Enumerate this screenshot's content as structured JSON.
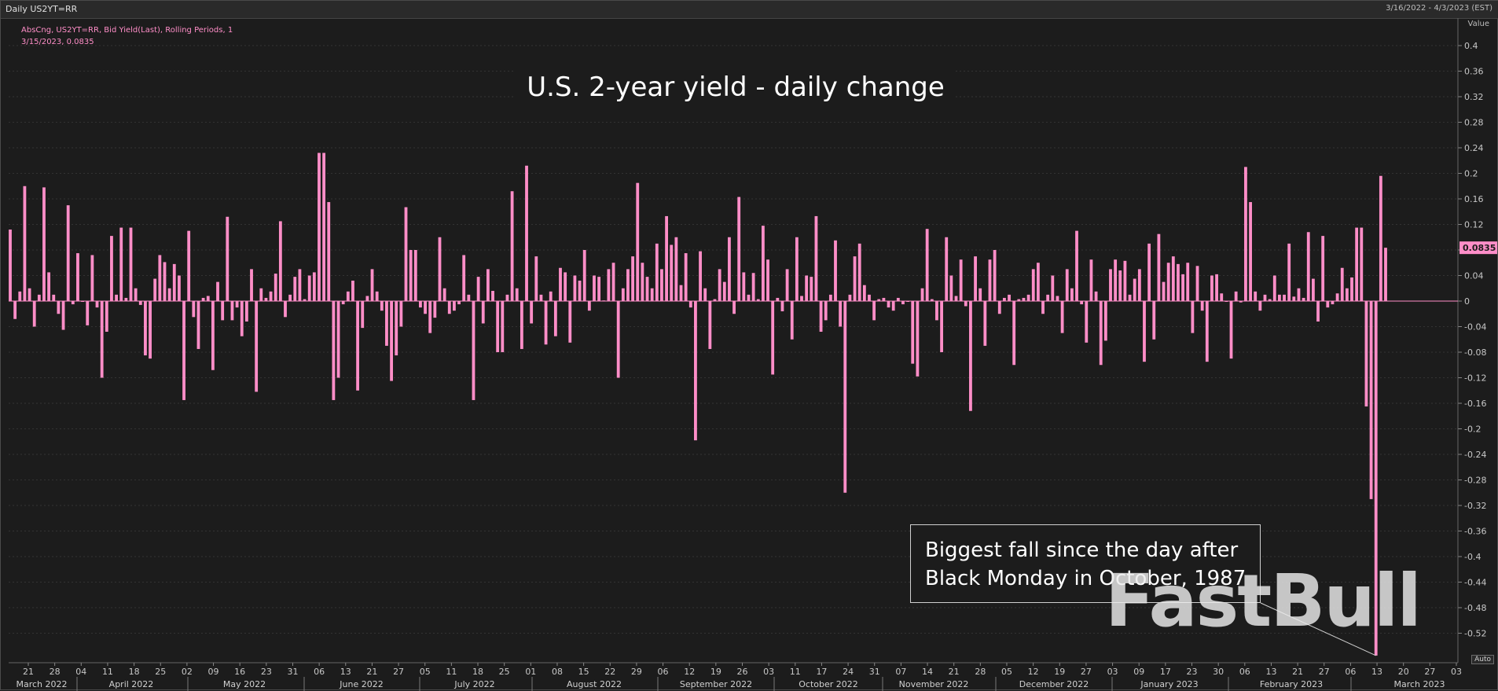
{
  "header": {
    "chart_name": "Daily US2YT=RR",
    "date_range": "3/16/2022 - 4/3/2023 (EST)"
  },
  "legend": {
    "line1": "AbsCng, US2YT=RR, Bid Yield(Last), Rolling Periods, 1",
    "line2": "3/15/2023, 0.0835"
  },
  "value_axis_label": "Value",
  "auto_label": "Auto",
  "annotation": {
    "line1": "Biggest fall since the day after",
    "line2": "Black Monday in October, 1987"
  },
  "watermark": "FastBull",
  "colors": {
    "bar": "#ff8ec8",
    "last_value_bg": "#ff8ec8",
    "background": "#1c1c1c",
    "grid": "#333333"
  },
  "chart_data": {
    "type": "bar",
    "title": "U.S. 2-year yield - daily change",
    "ylabel": "Value",
    "ylim": [
      -0.56,
      0.42
    ],
    "y_ticks": [
      0.4,
      0.36,
      0.32,
      0.28,
      0.24,
      0.2,
      0.16,
      0.12,
      0.08,
      0.04,
      0,
      -0.04,
      -0.08,
      -0.12,
      -0.16,
      -0.2,
      -0.24,
      -0.28,
      -0.32,
      -0.36,
      -0.4,
      -0.44,
      -0.48,
      -0.52
    ],
    "y_tick_labels": [
      "0.4",
      "0.36",
      "0.32",
      "0.28",
      "0.24",
      "0.2",
      "0.16",
      "0.12",
      "0.08",
      "0.04",
      "0",
      "-0.04",
      "-0.08",
      "-0.12",
      "-0.16",
      "-0.2",
      "-0.24",
      "-0.28",
      "-0.32",
      "-0.36",
      "-0.4",
      "-0.44",
      "-0.48",
      "-0.52"
    ],
    "last_value": 0.0835,
    "last_value_label": "0.0835",
    "grid": true,
    "day_ticks": [
      "21",
      "28",
      "04",
      "11",
      "18",
      "25",
      "02",
      "09",
      "16",
      "23",
      "31",
      "06",
      "13",
      "21",
      "27",
      "05",
      "11",
      "18",
      "25",
      "01",
      "08",
      "15",
      "22",
      "29",
      "06",
      "12",
      "19",
      "26",
      "03",
      "11",
      "17",
      "24",
      "31",
      "07",
      "14",
      "21",
      "28",
      "05",
      "12",
      "19",
      "27",
      "03",
      "09",
      "17",
      "23",
      "30",
      "06",
      "13",
      "21",
      "27",
      "06",
      "13",
      "20",
      "27",
      "03"
    ],
    "months": [
      "March 2022",
      "April 2022",
      "May 2022",
      "June 2022",
      "July 2022",
      "August 2022",
      "September 2022",
      "October 2022",
      "November 2022",
      "December 2022",
      "January 2023",
      "February 2023",
      "March 2023"
    ],
    "values": [
      0.112,
      -0.028,
      0.015,
      0.18,
      0.02,
      -0.04,
      0.01,
      0.178,
      0.045,
      0.01,
      -0.02,
      -0.045,
      0.15,
      -0.005,
      0.075,
      0,
      -0.038,
      0.072,
      -0.01,
      -0.12,
      -0.048,
      0.102,
      0.01,
      0.115,
      0.005,
      0.115,
      0.02,
      -0.006,
      -0.085,
      -0.09,
      0.035,
      0.072,
      0.061,
      0.02,
      0.058,
      0.04,
      -0.155,
      0.11,
      -0.025,
      -0.075,
      0.005,
      0.008,
      -0.108,
      0.03,
      -0.03,
      0.132,
      -0.03,
      -0.01,
      -0.055,
      -0.032,
      0.05,
      -0.142,
      0.02,
      0.005,
      0.015,
      0.043,
      0.125,
      -0.025,
      0.01,
      0.038,
      0.05,
      0.003,
      0.04,
      0.045,
      0.232,
      0.232,
      0.155,
      -0.155,
      -0.12,
      -0.005,
      0.015,
      0.032,
      -0.14,
      -0.042,
      0.008,
      0.05,
      0.015,
      -0.015,
      -0.07,
      -0.125,
      -0.085,
      -0.04,
      0.147,
      0.08,
      0.08,
      -0.01,
      -0.02,
      -0.05,
      -0.026,
      0.1,
      0.02,
      -0.02,
      -0.015,
      -0.005,
      0.072,
      0.01,
      -0.155,
      0.038,
      -0.035,
      0.05,
      0.016,
      -0.08,
      -0.08,
      0.01,
      0.172,
      0.02,
      -0.075,
      0.212,
      -0.035,
      0.07,
      0.01,
      -0.068,
      0.015,
      -0.055,
      0.052,
      0.045,
      -0.065,
      0.04,
      0.032,
      0.08,
      -0.015,
      0.04,
      0.038,
      0.001,
      0.05,
      0.06,
      -0.12,
      0.02,
      0.05,
      0.07,
      0.185,
      0.06,
      0.038,
      0.02,
      0.09,
      0.05,
      0.133,
      0.088,
      0.1,
      0.025,
      0.075,
      -0.01,
      -0.218,
      0.078,
      0.02,
      -0.075,
      0.003,
      0.05,
      0.03,
      0.1,
      -0.02,
      0.163,
      0.045,
      0.01,
      0.044,
      0.003,
      0.118,
      0.065,
      -0.115,
      0.005,
      -0.016,
      0.05,
      -0.06,
      0.1,
      0.008,
      0.04,
      0.038,
      0.133,
      -0.048,
      -0.03,
      0.01,
      0.095,
      -0.04,
      -0.3,
      0.01,
      0.07,
      0.09,
      0.025,
      0.01,
      -0.03,
      0.003,
      0.005,
      -0.01,
      -0.015,
      0.005,
      -0.005,
      0,
      -0.098,
      -0.118,
      0.02,
      0.113,
      0.003,
      -0.03,
      -0.08,
      0.1,
      0.04,
      0.008,
      0.065,
      -0.008,
      -0.172,
      0.07,
      0.02,
      -0.07,
      0.065,
      0.08,
      -0.02,
      0.005,
      0.01,
      -0.1,
      0.003,
      0.005,
      0.01,
      0.05,
      0.06,
      -0.02,
      0.01,
      0.04,
      0.008,
      -0.05,
      0.05,
      0.02,
      0.11,
      -0.005,
      -0.065,
      0.065,
      0.015,
      -0.1,
      -0.062,
      0.05,
      0.065,
      0.048,
      0.063,
      0.01,
      0.035,
      0.05,
      -0.095,
      0.09,
      -0.06,
      0.105,
      0.03,
      0.06,
      0.07,
      0.058,
      0.042,
      0.06,
      -0.05,
      0.055,
      -0.015,
      -0.095,
      0.04,
      0.042,
      0.012,
      -0.001,
      -0.09,
      0.015,
      -0.002,
      0.21,
      0.155,
      0.015,
      -0.015,
      0.01,
      0.003,
      0.04,
      0.01,
      0.01,
      0.09,
      0.007,
      0.02,
      0.005,
      0.108,
      0.035,
      -0.032,
      0.102,
      -0.01,
      -0.005,
      0.012,
      0.052,
      0.02,
      0.037,
      0.115,
      0.115,
      -0.165,
      -0.31,
      -0.555,
      0.196,
      0.0835
    ]
  }
}
